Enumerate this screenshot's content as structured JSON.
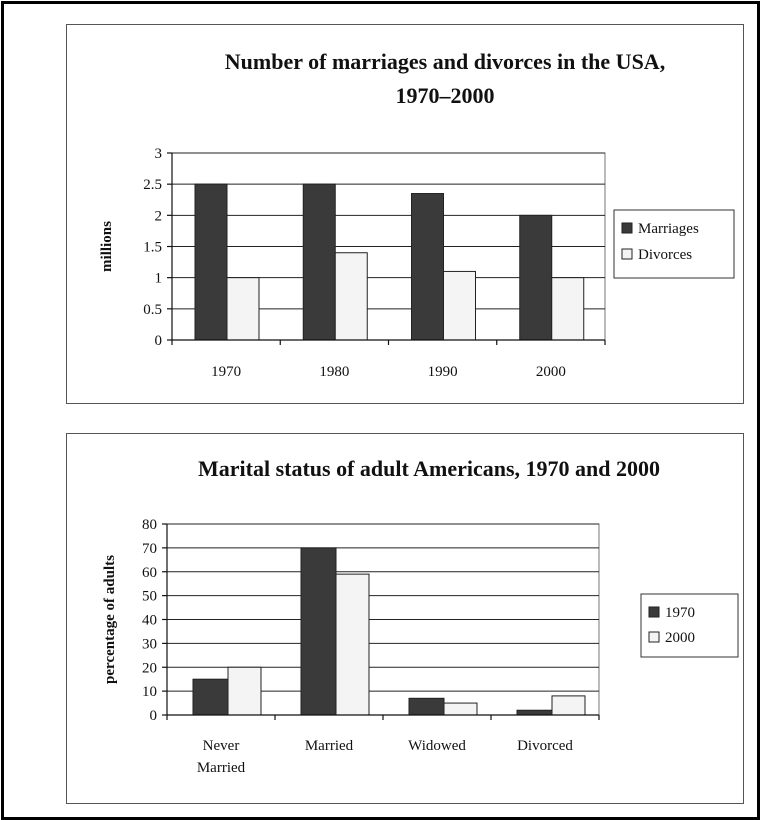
{
  "chart_data": [
    {
      "type": "bar",
      "title": [
        "Number of marriages and divorces in the USA,",
        "1970–2000"
      ],
      "ylabel": "millions",
      "categories": [
        "1970",
        "1980",
        "1990",
        "2000"
      ],
      "ylim": [
        0,
        3
      ],
      "yticks": [
        "0",
        "0.5",
        "1",
        "1.5",
        "2",
        "2.5",
        "3"
      ],
      "series": [
        {
          "name": "Marriages",
          "values": [
            2.5,
            2.5,
            2.35,
            2.0
          ],
          "color": "#3a3a3a"
        },
        {
          "name": "Divorces",
          "values": [
            1.0,
            1.4,
            1.1,
            1.0
          ],
          "color": "#f4f4f4"
        }
      ],
      "grid": true,
      "legend": "right"
    },
    {
      "type": "bar",
      "title": [
        "Marital status of adult Americans, 1970 and 2000"
      ],
      "ylabel": "percentage of adults",
      "categories": [
        [
          "Never",
          "Married"
        ],
        [
          "Married"
        ],
        [
          "Widowed"
        ],
        [
          "Divorced"
        ]
      ],
      "ylim": [
        0,
        80
      ],
      "yticks": [
        "0",
        "10",
        "20",
        "30",
        "40",
        "50",
        "60",
        "70",
        "80"
      ],
      "series": [
        {
          "name": "1970",
          "values": [
            15,
            70,
            7,
            2
          ],
          "color": "#3a3a3a"
        },
        {
          "name": "2000",
          "values": [
            20,
            59,
            5,
            8
          ],
          "color": "#f4f4f4"
        }
      ],
      "grid": true,
      "legend": "right"
    }
  ]
}
